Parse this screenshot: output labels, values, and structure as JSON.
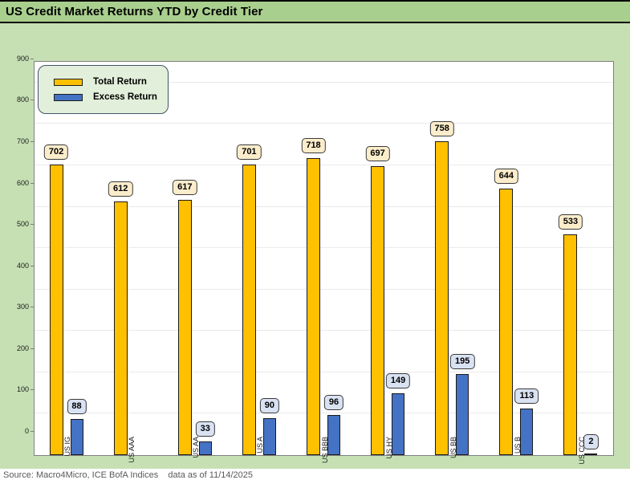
{
  "window": {
    "title": "US Credit Market Returns YTD by Credit Tier"
  },
  "source_line": {
    "source": "Source: Macro4Micro, ICE BofA Indices",
    "as_of": "data as of 11/14/2025"
  },
  "chart_data": {
    "type": "bar",
    "title": "US Credit Market Returns YTD by Credit Tier",
    "categories": [
      "US IG",
      "US AAA",
      "US AA",
      "US A",
      "US BBB",
      "US HY",
      "US BB",
      "US B",
      "US CCC"
    ],
    "series": [
      {
        "name": "Total Return",
        "color": "#FFC000",
        "label_fill": "#FBEDCB",
        "values": [
          702,
          612,
          617,
          701,
          718,
          697,
          758,
          644,
          533
        ]
      },
      {
        "name": "Excess Return",
        "color": "#4472C4",
        "label_fill": "#D9E2F2",
        "values": [
          88,
          null,
          33,
          90,
          96,
          149,
          195,
          113,
          2
        ]
      }
    ],
    "ylim": [
      0,
      950
    ],
    "yticks": [
      0,
      100,
      200,
      300,
      400,
      500,
      600,
      700,
      800,
      900
    ],
    "grid": true,
    "legend_position": "top-left",
    "data_labels": true
  },
  "colors": {
    "title_band": "#A9CF8E",
    "chart_bg": "#C6E0B4",
    "legend_bg": "#E2EFDA",
    "legend_border": "#44546A",
    "plot_border": "#7F7F7F",
    "gridline": "#EAEAEA",
    "bar_border": "#1A1A1A",
    "label_border": "#3A3A3A",
    "source_text": "#595959"
  }
}
